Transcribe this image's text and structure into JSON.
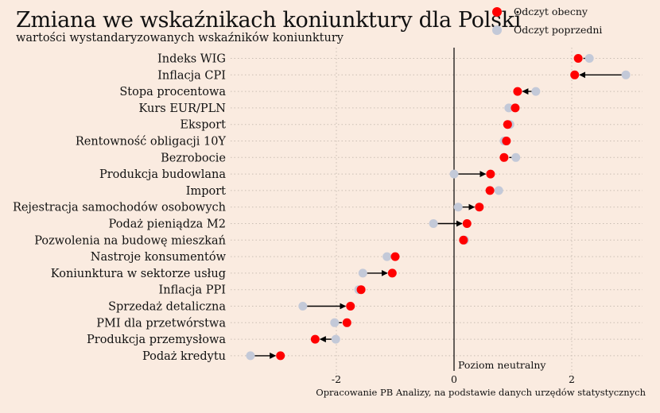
{
  "chart_data": {
    "type": "dot-arrow",
    "title": "Zmiana we wskaźnikach koniunktury dla Polski",
    "subtitle": "wartości wystandaryzowanych wskaźników koniunktury",
    "xlabel": "",
    "ylabel": "",
    "xlim": [
      -3.8,
      3.2
    ],
    "x_ticks": [
      -2,
      0,
      2
    ],
    "x_tick_labels": [
      "-2",
      "0",
      "2"
    ],
    "grid": true,
    "legend_position": "top-right",
    "reference_line": {
      "x": 0,
      "label": "Poziom neutralny"
    },
    "series": [
      {
        "name": "Odczyt obecny",
        "color": "#ff0000"
      },
      {
        "name": "Odczyt poprzedni",
        "color": "#c3c9d8"
      }
    ],
    "categories": [
      "Indeks WIG",
      "Inflacja CPI",
      "Stopa procentowa",
      "Kurs EUR/PLN",
      "Eksport",
      "Rentowność obligacji 10Y",
      "Bezrobocie",
      "Produkcja budowlana",
      "Import",
      "Rejestracja samochodów osobowych",
      "Podaż pieniądza M2",
      "Pozwolenia na budowę mieszkań",
      "Nastroje konsumentów",
      "Koniunktura w sektorze usług",
      "Inflacja PPI",
      "Sprzedaż detaliczna",
      "PMI dla przetwórstwa",
      "Produkcja przemysłowa",
      "Podaż kredytu"
    ],
    "current": [
      2.11,
      2.05,
      1.08,
      1.04,
      0.91,
      0.89,
      0.85,
      0.62,
      0.61,
      0.43,
      0.22,
      0.16,
      -1.0,
      -1.05,
      -1.58,
      -1.76,
      -1.82,
      -2.36,
      -2.95
    ],
    "previous": [
      2.3,
      2.92,
      1.39,
      0.93,
      0.95,
      0.85,
      1.05,
      0.0,
      0.76,
      0.07,
      -0.35,
      0.18,
      -1.14,
      -1.55,
      -1.62,
      -2.57,
      -2.03,
      -2.01,
      -3.46
    ],
    "caption": "Opracowanie PB Analizy, na podstawie danych urzędów statystycznych"
  }
}
